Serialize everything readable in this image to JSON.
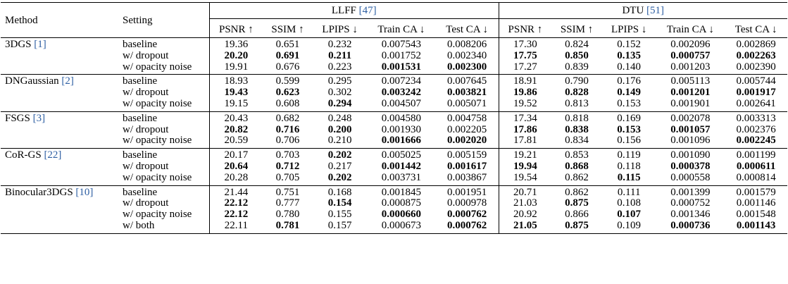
{
  "header": {
    "method": "Method",
    "setting": "Setting",
    "groups": [
      {
        "name": "LLFF",
        "cite": "[47]"
      },
      {
        "name": "DTU",
        "cite": "[51]"
      }
    ],
    "metrics": [
      "PSNR ↑",
      "SSIM ↑",
      "LPIPS ↓",
      "Train CA ↓",
      "Test CA ↓"
    ]
  },
  "methods": [
    {
      "name": "3DGS",
      "cite": "[1]",
      "rows": [
        {
          "setting": "baseline",
          "llff": [
            "19.36",
            "0.651",
            "0.232",
            "0.007543",
            "0.008206"
          ],
          "llff_bold": [
            false,
            false,
            false,
            false,
            false
          ],
          "dtu": [
            "17.30",
            "0.824",
            "0.152",
            "0.002096",
            "0.002869"
          ],
          "dtu_bold": [
            false,
            false,
            false,
            false,
            false
          ]
        },
        {
          "setting": "w/ dropout",
          "llff": [
            "20.20",
            "0.691",
            "0.211",
            "0.001752",
            "0.002340"
          ],
          "llff_bold": [
            true,
            true,
            true,
            false,
            false
          ],
          "dtu": [
            "17.75",
            "0.850",
            "0.135",
            "0.000757",
            "0.002263"
          ],
          "dtu_bold": [
            true,
            true,
            true,
            true,
            true
          ]
        },
        {
          "setting": "w/ opacity noise",
          "llff": [
            "19.91",
            "0.676",
            "0.223",
            "0.001531",
            "0.002300"
          ],
          "llff_bold": [
            false,
            false,
            false,
            true,
            true
          ],
          "dtu": [
            "17.27",
            "0.839",
            "0.140",
            "0.001203",
            "0.002390"
          ],
          "dtu_bold": [
            false,
            false,
            false,
            false,
            false
          ]
        }
      ]
    },
    {
      "name": "DNGaussian",
      "cite": "[2]",
      "rows": [
        {
          "setting": "baseline",
          "llff": [
            "18.93",
            "0.599",
            "0.295",
            "0.007234",
            "0.007645"
          ],
          "llff_bold": [
            false,
            false,
            false,
            false,
            false
          ],
          "dtu": [
            "18.91",
            "0.790",
            "0.176",
            "0.005113",
            "0.005744"
          ],
          "dtu_bold": [
            false,
            false,
            false,
            false,
            false
          ]
        },
        {
          "setting": "w/ dropout",
          "llff": [
            "19.43",
            "0.623",
            "0.302",
            "0.003242",
            "0.003821"
          ],
          "llff_bold": [
            true,
            true,
            false,
            true,
            true
          ],
          "dtu": [
            "19.86",
            "0.828",
            "0.149",
            "0.001201",
            "0.001917"
          ],
          "dtu_bold": [
            true,
            true,
            true,
            true,
            true
          ]
        },
        {
          "setting": "w/ opacity noise",
          "llff": [
            "19.15",
            "0.608",
            "0.294",
            "0.004507",
            "0.005071"
          ],
          "llff_bold": [
            false,
            false,
            true,
            false,
            false
          ],
          "dtu": [
            "19.52",
            "0.813",
            "0.153",
            "0.001901",
            "0.002641"
          ],
          "dtu_bold": [
            false,
            false,
            false,
            false,
            false
          ]
        }
      ]
    },
    {
      "name": "FSGS",
      "cite": "[3]",
      "rows": [
        {
          "setting": "baseline",
          "llff": [
            "20.43",
            "0.682",
            "0.248",
            "0.004580",
            "0.004758"
          ],
          "llff_bold": [
            false,
            false,
            false,
            false,
            false
          ],
          "dtu": [
            "17.34",
            "0.818",
            "0.169",
            "0.002078",
            "0.003313"
          ],
          "dtu_bold": [
            false,
            false,
            false,
            false,
            false
          ]
        },
        {
          "setting": "w/ dropout",
          "llff": [
            "20.82",
            "0.716",
            "0.200",
            "0.001930",
            "0.002205"
          ],
          "llff_bold": [
            true,
            true,
            true,
            false,
            false
          ],
          "dtu": [
            "17.86",
            "0.838",
            "0.153",
            "0.001057",
            "0.002376"
          ],
          "dtu_bold": [
            true,
            true,
            true,
            true,
            false
          ]
        },
        {
          "setting": "w/ opacity noise",
          "llff": [
            "20.59",
            "0.706",
            "0.210",
            "0.001666",
            "0.002020"
          ],
          "llff_bold": [
            false,
            false,
            false,
            true,
            true
          ],
          "dtu": [
            "17.81",
            "0.834",
            "0.156",
            "0.001096",
            "0.002245"
          ],
          "dtu_bold": [
            false,
            false,
            false,
            false,
            true
          ]
        }
      ]
    },
    {
      "name": "CoR-GS",
      "cite": "[22]",
      "rows": [
        {
          "setting": "baseline",
          "llff": [
            "20.17",
            "0.703",
            "0.202",
            "0.005025",
            "0.005159"
          ],
          "llff_bold": [
            false,
            false,
            true,
            false,
            false
          ],
          "dtu": [
            "19.21",
            "0.853",
            "0.119",
            "0.001090",
            "0.001199"
          ],
          "dtu_bold": [
            false,
            false,
            false,
            false,
            false
          ]
        },
        {
          "setting": "w/ dropout",
          "llff": [
            "20.64",
            "0.712",
            "0.217",
            "0.001442",
            "0.001617"
          ],
          "llff_bold": [
            true,
            true,
            false,
            true,
            true
          ],
          "dtu": [
            "19.94",
            "0.868",
            "0.118",
            "0.000378",
            "0.000611"
          ],
          "dtu_bold": [
            true,
            true,
            false,
            true,
            true
          ]
        },
        {
          "setting": "w/ opacity noise",
          "llff": [
            "20.28",
            "0.705",
            "0.202",
            "0.003731",
            "0.003867"
          ],
          "llff_bold": [
            false,
            false,
            true,
            false,
            false
          ],
          "dtu": [
            "19.54",
            "0.862",
            "0.115",
            "0.000558",
            "0.000814"
          ],
          "dtu_bold": [
            false,
            false,
            true,
            false,
            false
          ]
        }
      ]
    },
    {
      "name": "Binocular3DGS",
      "cite": "[10]",
      "rows": [
        {
          "setting": "baseline",
          "llff": [
            "21.44",
            "0.751",
            "0.168",
            "0.001845",
            "0.001951"
          ],
          "llff_bold": [
            false,
            false,
            false,
            false,
            false
          ],
          "dtu": [
            "20.71",
            "0.862",
            "0.111",
            "0.001399",
            "0.001579"
          ],
          "dtu_bold": [
            false,
            false,
            false,
            false,
            false
          ]
        },
        {
          "setting": "w/ dropout",
          "llff": [
            "22.12",
            "0.777",
            "0.154",
            "0.000875",
            "0.000978"
          ],
          "llff_bold": [
            true,
            false,
            true,
            false,
            false
          ],
          "dtu": [
            "21.03",
            "0.875",
            "0.108",
            "0.000752",
            "0.001146"
          ],
          "dtu_bold": [
            false,
            true,
            false,
            false,
            false
          ]
        },
        {
          "setting": "w/ opacity noise",
          "llff": [
            "22.12",
            "0.780",
            "0.155",
            "0.000660",
            "0.000762"
          ],
          "llff_bold": [
            true,
            false,
            false,
            true,
            true
          ],
          "dtu": [
            "20.92",
            "0.866",
            "0.107",
            "0.001346",
            "0.001548"
          ],
          "dtu_bold": [
            false,
            false,
            true,
            false,
            false
          ]
        },
        {
          "setting": "w/ both",
          "llff": [
            "22.11",
            "0.781",
            "0.157",
            "0.000673",
            "0.000762"
          ],
          "llff_bold": [
            false,
            true,
            false,
            false,
            true
          ],
          "dtu": [
            "21.05",
            "0.875",
            "0.109",
            "0.000736",
            "0.001143"
          ],
          "dtu_bold": [
            true,
            true,
            false,
            true,
            true
          ]
        }
      ]
    }
  ]
}
